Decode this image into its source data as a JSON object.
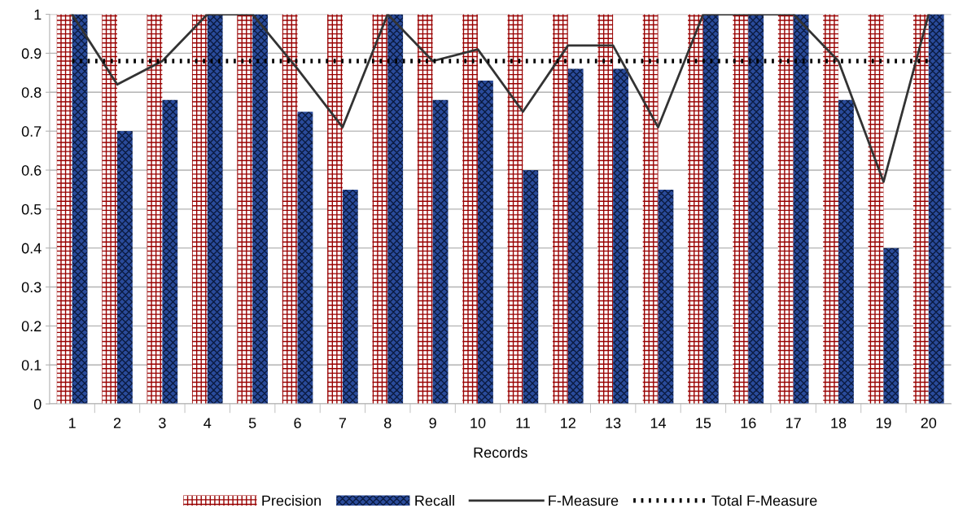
{
  "chart_data": {
    "type": "bar",
    "xlabel": "Records",
    "categories": [
      "1",
      "2",
      "3",
      "4",
      "5",
      "6",
      "7",
      "8",
      "9",
      "10",
      "11",
      "12",
      "13",
      "14",
      "15",
      "16",
      "17",
      "18",
      "19",
      "20"
    ],
    "series": [
      {
        "name": "Precision",
        "color": "#990000",
        "values": [
          1,
          1,
          1,
          1,
          1,
          1,
          1,
          1,
          1,
          1,
          1,
          1,
          1,
          1,
          1,
          1,
          1,
          1,
          1,
          1
        ]
      },
      {
        "name": "Recall",
        "color": "#2a4b9b",
        "values": [
          1,
          0.7,
          0.78,
          1,
          1,
          0.75,
          0.55,
          1,
          0.78,
          0.83,
          0.6,
          0.86,
          0.86,
          0.55,
          1,
          1,
          1,
          0.78,
          0.4,
          1
        ]
      },
      {
        "name": "F-Measure",
        "type": "line",
        "color": "#333333",
        "line_style": "solid",
        "values": [
          1,
          0.82,
          0.88,
          1,
          1,
          0.86,
          0.71,
          1,
          0.88,
          0.91,
          0.75,
          0.92,
          0.92,
          0.71,
          1,
          1,
          1,
          0.88,
          0.57,
          1
        ]
      },
      {
        "name": "Total F-Measure",
        "type": "line",
        "color": "#000000",
        "line_style": "dotted",
        "values": [
          0.88,
          0.88,
          0.88,
          0.88,
          0.88,
          0.88,
          0.88,
          0.88,
          0.88,
          0.88,
          0.88,
          0.88,
          0.88,
          0.88,
          0.88,
          0.88,
          0.88,
          0.88,
          0.88,
          0.88
        ]
      }
    ],
    "ylim": [
      0,
      1
    ],
    "yticks": [
      0,
      0.1,
      0.2,
      0.3,
      0.4,
      0.5,
      0.6,
      0.7,
      0.8,
      0.9,
      1
    ],
    "grid": "y",
    "legend": "bottom",
    "marker": "none"
  }
}
